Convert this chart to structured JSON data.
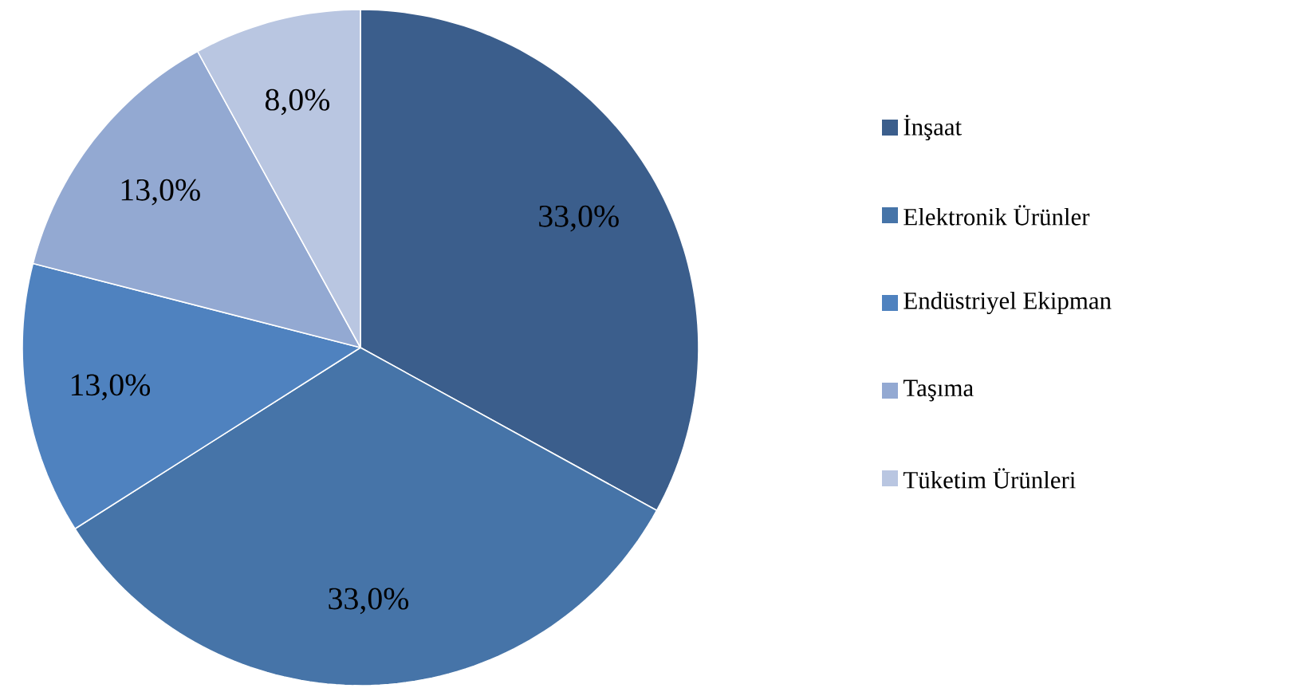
{
  "chart_data": {
    "type": "pie",
    "categories": [
      "İnşaat",
      "Elektronik Ürünler",
      "Endüstriyel Ekipman",
      "Taşıma",
      "Tüketim Ürünleri"
    ],
    "values": [
      33,
      33,
      13,
      13,
      8
    ],
    "colors": [
      "#3b5e8c",
      "#4674a8",
      "#4f82bf",
      "#93a9d2",
      "#b9c6e1"
    ],
    "value_labels": [
      "33,0%",
      "33,0%",
      "13,0%",
      "13,0%",
      "8,0%"
    ],
    "legend": "right"
  }
}
